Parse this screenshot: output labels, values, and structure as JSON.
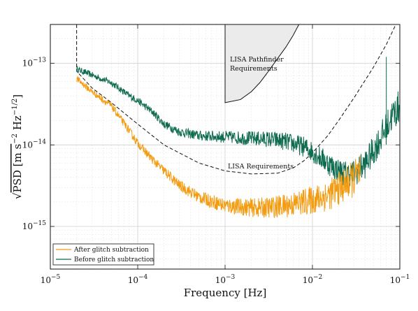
{
  "chart_data": {
    "type": "line",
    "xlabel": "Frequency [Hz]",
    "ylabel_text": "PSD  [m s",
    "ylabel_sqrt": "√",
    "ylabel_unit_parts": [
      "−2",
      " Hz",
      "−1/2",
      "]"
    ],
    "xscale": "log",
    "yscale": "log",
    "xlim": [
      1e-05,
      0.1
    ],
    "ylim": [
      3e-16,
      3e-13
    ],
    "grid": true,
    "x_ticks": [
      {
        "value": 1e-05,
        "base": "10",
        "exp": "−5"
      },
      {
        "value": 0.0001,
        "base": "10",
        "exp": "−4"
      },
      {
        "value": 0.001,
        "base": "10",
        "exp": "−3"
      },
      {
        "value": 0.01,
        "base": "10",
        "exp": "−2"
      },
      {
        "value": 0.1,
        "base": "10",
        "exp": "−1"
      }
    ],
    "y_ticks": [
      {
        "value": 1e-15,
        "base": "10",
        "exp": "−15"
      },
      {
        "value": 1e-14,
        "base": "10",
        "exp": "−14"
      },
      {
        "value": 1e-13,
        "base": "10",
        "exp": "−13"
      }
    ],
    "legend_position": "bottom-left",
    "series": [
      {
        "name": "Before glitch subtraction",
        "color": "#0e6b4f",
        "noisy": true,
        "x": [
          2e-05,
          3e-05,
          5e-05,
          8e-05,
          0.0001,
          0.00015,
          0.0002,
          0.0003,
          0.0005,
          0.001,
          0.002,
          0.003,
          0.005,
          0.008,
          0.01,
          0.015,
          0.02,
          0.025,
          0.03,
          0.04,
          0.05,
          0.06,
          0.07,
          0.08,
          0.1
        ],
        "y": [
          8.5e-14,
          7.2e-14,
          5.8e-14,
          4e-14,
          3.5e-14,
          2.5e-14,
          1.8e-14,
          1.45e-14,
          1.3e-14,
          1.25e-14,
          1.2e-14,
          1.18e-14,
          1.1e-14,
          9.5e-15,
          8.3e-15,
          6e-15,
          4.8e-15,
          4.4e-15,
          4.5e-15,
          5.8e-15,
          8.5e-15,
          1.2e-14,
          1.6e-14,
          2.2e-14,
          3e-14
        ]
      },
      {
        "name": "After glitch subtraction",
        "color": "#f39c12",
        "noisy": true,
        "x": [
          2e-05,
          3e-05,
          5e-05,
          8e-05,
          0.0001,
          0.00015,
          0.0002,
          0.0003,
          0.0005,
          0.001,
          0.002,
          0.003,
          0.005,
          0.008,
          0.01,
          0.015,
          0.02,
          0.025,
          0.03,
          0.035
        ],
        "y": [
          6.5e-14,
          4.5e-14,
          3e-14,
          1.5e-14,
          1.05e-14,
          6.5e-15,
          4.8e-15,
          3.2e-15,
          2.3e-15,
          1.8e-15,
          1.7e-15,
          1.7e-15,
          1.8e-15,
          2e-15,
          2.1e-15,
          2.4e-15,
          2.9e-15,
          3.4e-15,
          3.9e-15,
          4.5e-15
        ]
      }
    ],
    "requirements": [
      {
        "label": "LISA Requirements",
        "style": "dashed",
        "color": "#111111",
        "x": [
          2e-05,
          2e-05,
          3e-05,
          5e-05,
          0.0001,
          0.0002,
          0.0005,
          0.001,
          0.002,
          0.004,
          0.006,
          0.008,
          0.01,
          0.015,
          0.02,
          0.03,
          0.05,
          0.07,
          0.09
        ],
        "y": [
          3e-13,
          8e-14,
          5e-14,
          3.3e-14,
          1.8e-14,
          1e-14,
          6e-15,
          4.8e-15,
          4.4e-15,
          4.5e-15,
          5.2e-15,
          6.4e-15,
          8e-15,
          1.3e-14,
          2e-14,
          3.8e-14,
          9e-14,
          1.7e-13,
          3e-13
        ]
      },
      {
        "label_lines": [
          "LISA Pathfinder",
          "Requirements"
        ],
        "style": "solid",
        "fill": "#ebebeb",
        "color": "#111111",
        "x": [
          0.001,
          0.0015,
          0.002,
          0.0025,
          0.003,
          0.004,
          0.005,
          0.006,
          0.007
        ],
        "y": [
          3.3e-14,
          3.6e-14,
          4.5e-14,
          5.8e-14,
          7.5e-14,
          1.15e-13,
          1.6e-13,
          2.2e-13,
          3e-13
        ]
      }
    ],
    "spike": {
      "x": 0.07,
      "y_top": 1.2e-13,
      "y_base": 1.5e-14
    }
  }
}
